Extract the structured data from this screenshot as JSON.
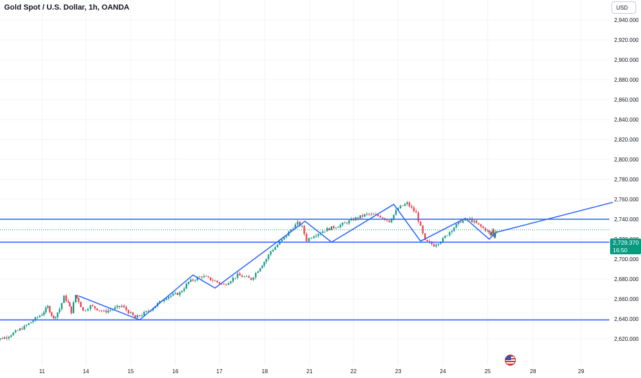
{
  "header": {
    "symbol": "Gold Spot / U.S. Dollar, 1h, OANDA",
    "currency": "USD"
  },
  "price_tag": {
    "price": "2,729.370",
    "countdown": "16:50",
    "color": "#089981"
  },
  "icons": {
    "event_flag": "us-flag-icon"
  },
  "colors": {
    "up": "#089981",
    "down": "#f23645",
    "drawing": "#2962ff"
  },
  "chart_data": {
    "type": "candlestick",
    "title": "Gold Spot / U.S. Dollar, 1h, OANDA",
    "y_axis": {
      "ticks": [
        2620,
        2640,
        2660,
        2680,
        2700,
        2720,
        2740,
        2760,
        2780,
        2800,
        2820,
        2840,
        2860,
        2880,
        2900,
        2920,
        2940
      ],
      "tick_labels": [
        "2,620.000",
        "2,640.000",
        "2,660.000",
        "2,680.000",
        "2,700.000",
        "2,720.000",
        "2,740.000",
        "2,760.000",
        "2,780.000",
        "2,800.000",
        "2,820.000",
        "2,840.000",
        "2,860.000",
        "2,880.000",
        "2,900.000",
        "2,920.000",
        "2,940.000"
      ],
      "position": "right"
    },
    "x_axis": {
      "ticks": [
        11,
        14,
        15,
        16,
        17,
        18,
        21,
        22,
        23,
        24,
        25,
        28,
        29
      ],
      "tick_labels": [
        "11",
        "14",
        "15",
        "16",
        "17",
        "18",
        "21",
        "22",
        "23",
        "24",
        "25",
        "28",
        "29"
      ]
    },
    "last_price": 2729.37,
    "horizontal_levels": [
      2740,
      2717,
      2639
    ],
    "trend_line": {
      "from": {
        "x": 25.6,
        "y": 2727
      },
      "to": {
        "x": 29.7,
        "y": 2757
      }
    },
    "zigzag_pattern": [
      {
        "x": 13.5,
        "y": 2663
      },
      {
        "x": 15.2,
        "y": 2639
      },
      {
        "x": 16.4,
        "y": 2684
      },
      {
        "x": 16.9,
        "y": 2671
      },
      {
        "x": 20.7,
        "y": 2738
      },
      {
        "x": 21.5,
        "y": 2717
      },
      {
        "x": 22.9,
        "y": 2755
      },
      {
        "x": 23.5,
        "y": 2718
      },
      {
        "x": 24.5,
        "y": 2741
      },
      {
        "x": 25.1,
        "y": 2720
      },
      {
        "x": 25.5,
        "y": 2726
      }
    ],
    "price_path": [
      {
        "x": 9.8,
        "y": 2617
      },
      {
        "x": 10.2,
        "y": 2622
      },
      {
        "x": 10.6,
        "y": 2632
      },
      {
        "x": 11.0,
        "y": 2645
      },
      {
        "x": 11.4,
        "y": 2652
      },
      {
        "x": 11.8,
        "y": 2640
      },
      {
        "x": 12.2,
        "y": 2650
      },
      {
        "x": 12.5,
        "y": 2662
      },
      {
        "x": 12.8,
        "y": 2656
      },
      {
        "x": 13.0,
        "y": 2647
      },
      {
        "x": 13.3,
        "y": 2664
      },
      {
        "x": 13.5,
        "y": 2658
      },
      {
        "x": 13.8,
        "y": 2648
      },
      {
        "x": 14.1,
        "y": 2653
      },
      {
        "x": 14.4,
        "y": 2647
      },
      {
        "x": 14.8,
        "y": 2653
      },
      {
        "x": 15.1,
        "y": 2641
      },
      {
        "x": 15.4,
        "y": 2648
      },
      {
        "x": 15.8,
        "y": 2662
      },
      {
        "x": 16.1,
        "y": 2666
      },
      {
        "x": 16.3,
        "y": 2677
      },
      {
        "x": 16.6,
        "y": 2683
      },
      {
        "x": 16.9,
        "y": 2678
      },
      {
        "x": 17.1,
        "y": 2674
      },
      {
        "x": 17.4,
        "y": 2684
      },
      {
        "x": 17.7,
        "y": 2680
      },
      {
        "x": 17.9,
        "y": 2692
      },
      {
        "x": 18.1,
        "y": 2700
      },
      {
        "x": 18.4,
        "y": 2708
      },
      {
        "x": 18.7,
        "y": 2712
      },
      {
        "x": 19.0,
        "y": 2717
      },
      {
        "x": 19.3,
        "y": 2721
      },
      {
        "x": 19.6,
        "y": 2727
      },
      {
        "x": 19.9,
        "y": 2732
      },
      {
        "x": 20.2,
        "y": 2736
      },
      {
        "x": 20.5,
        "y": 2732
      },
      {
        "x": 20.8,
        "y": 2719
      },
      {
        "x": 21.1,
        "y": 2724
      },
      {
        "x": 21.4,
        "y": 2730
      },
      {
        "x": 21.7,
        "y": 2734
      },
      {
        "x": 22.0,
        "y": 2740
      },
      {
        "x": 22.3,
        "y": 2745
      },
      {
        "x": 22.6,
        "y": 2743
      },
      {
        "x": 22.8,
        "y": 2738
      },
      {
        "x": 23.0,
        "y": 2751
      },
      {
        "x": 23.2,
        "y": 2756
      },
      {
        "x": 23.4,
        "y": 2746
      },
      {
        "x": 23.6,
        "y": 2718
      },
      {
        "x": 23.8,
        "y": 2714
      },
      {
        "x": 24.0,
        "y": 2720
      },
      {
        "x": 24.2,
        "y": 2730
      },
      {
        "x": 24.4,
        "y": 2738
      },
      {
        "x": 24.6,
        "y": 2740
      },
      {
        "x": 24.8,
        "y": 2734
      },
      {
        "x": 25.0,
        "y": 2728
      },
      {
        "x": 25.2,
        "y": 2724
      },
      {
        "x": 25.35,
        "y": 2730
      },
      {
        "x": 25.45,
        "y": 2722
      },
      {
        "x": 25.55,
        "y": 2729
      }
    ],
    "grid": true,
    "legend": "none"
  }
}
